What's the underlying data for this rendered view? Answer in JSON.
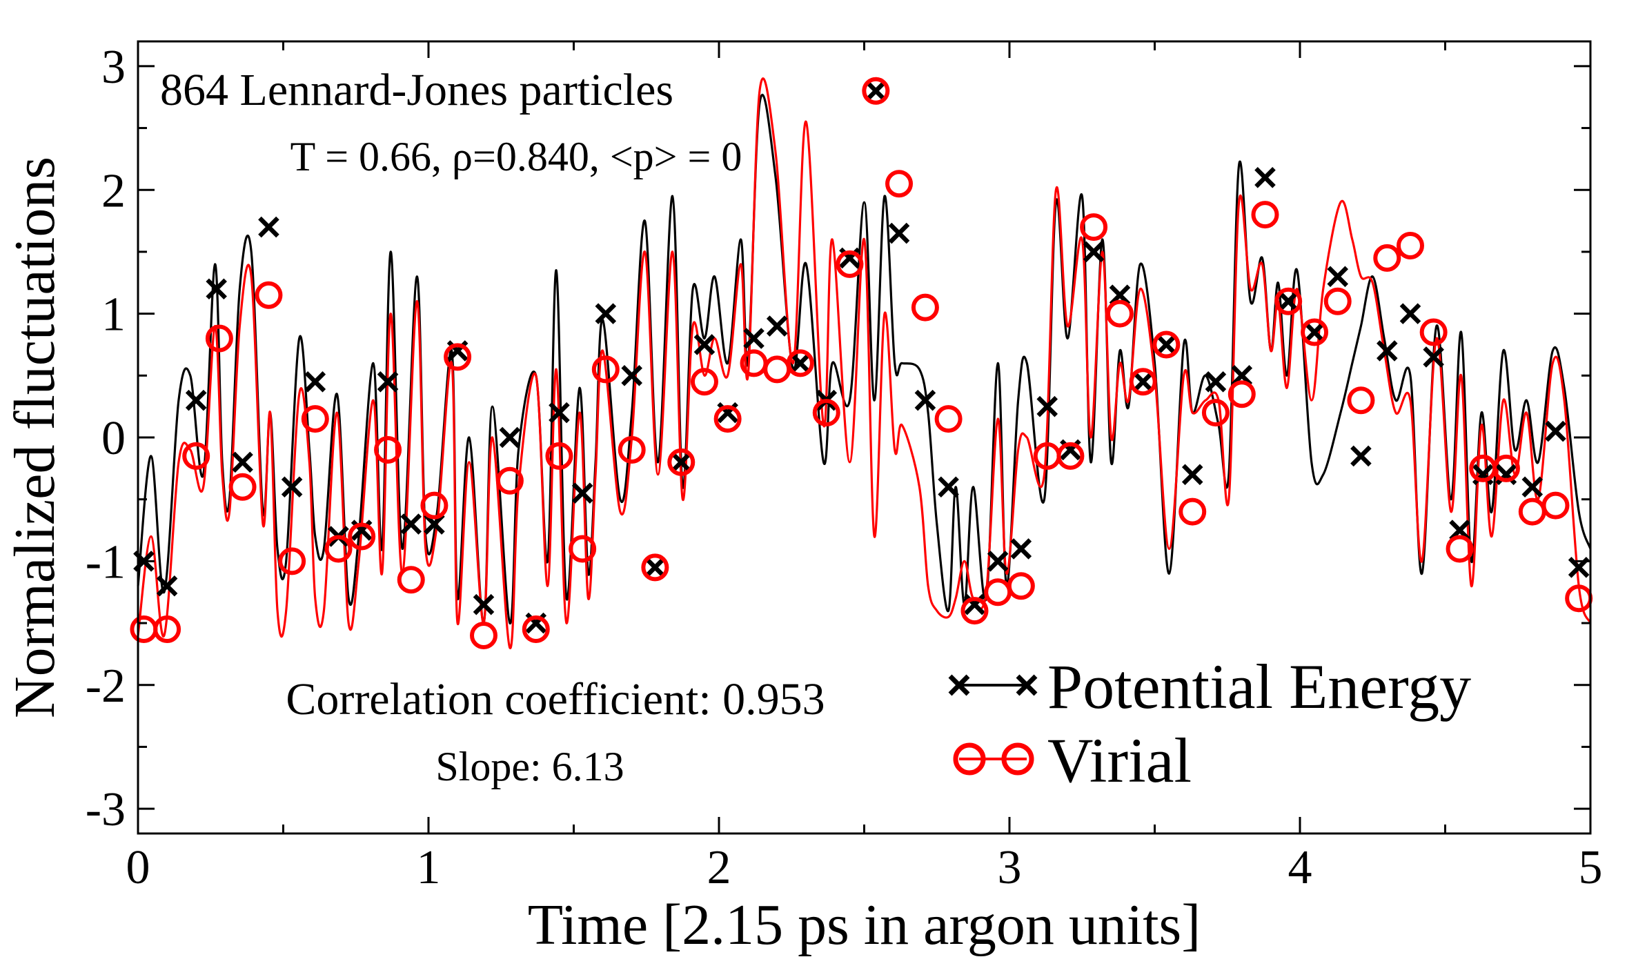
{
  "chart_data": {
    "type": "line",
    "title": "",
    "xlabel": "Time [2.15 ps in argon units]",
    "ylabel": "Normalized fluctuations",
    "xlim": [
      0,
      5
    ],
    "ylim": [
      -3.2,
      3.2
    ],
    "x_ticks": [
      0,
      1,
      2,
      3,
      4,
      5
    ],
    "y_ticks": [
      -3,
      -2,
      -1,
      0,
      1,
      2,
      3
    ],
    "x_tick_labels": [
      "0",
      "1",
      "2",
      "3",
      "4",
      "5"
    ],
    "y_tick_labels": [
      "-3",
      "-2",
      "-1",
      "0",
      "1",
      "2",
      "3"
    ],
    "annotations": {
      "system": "864 Lennard-Jones particles",
      "conditions": "T = 0.66, ρ=0.840, <p> = 0",
      "correlation": "Correlation coefficient: 0.953",
      "slope": "Slope: 6.13"
    },
    "legend_position": "bottom-right",
    "series": [
      {
        "name": "Potential Energy",
        "color": "#000000",
        "marker": "x",
        "x": [
          0.0,
          0.045,
          0.09,
          0.14,
          0.18,
          0.225,
          0.265,
          0.29,
          0.315,
          0.35,
          0.39,
          0.43,
          0.455,
          0.48,
          0.51,
          0.555,
          0.59,
          0.61,
          0.64,
          0.685,
          0.725,
          0.76,
          0.81,
          0.84,
          0.87,
          0.91,
          0.96,
          0.99,
          1.03,
          1.08,
          1.1,
          1.14,
          1.19,
          1.22,
          1.28,
          1.31,
          1.37,
          1.41,
          1.44,
          1.475,
          1.52,
          1.55,
          1.575,
          1.6,
          1.66,
          1.7,
          1.745,
          1.79,
          1.84,
          1.875,
          1.91,
          1.95,
          1.985,
          2.03,
          2.075,
          2.1,
          2.14,
          2.195,
          2.255,
          2.3,
          2.36,
          2.39,
          2.45,
          2.5,
          2.535,
          2.57,
          2.605,
          2.63,
          2.69,
          2.72,
          2.75,
          2.79,
          2.815,
          2.845,
          2.875,
          2.92,
          2.96,
          2.99,
          3.03,
          3.06,
          3.12,
          3.16,
          3.2,
          3.25,
          3.28,
          3.32,
          3.35,
          3.38,
          3.41,
          3.45,
          3.5,
          3.55,
          3.6,
          3.63,
          3.675,
          3.72,
          3.755,
          3.79,
          3.83,
          3.87,
          3.9,
          3.925,
          3.955,
          3.99,
          4.04,
          4.08,
          4.14,
          4.18,
          4.21,
          4.25,
          4.29,
          4.33,
          4.38,
          4.42,
          4.47,
          4.52,
          4.555,
          4.59,
          4.625,
          4.66,
          4.7,
          4.74,
          4.78,
          4.82,
          4.87,
          4.91,
          4.96,
          5.0
        ],
        "y": [
          -1.2,
          -0.15,
          -1.25,
          0.3,
          0.5,
          -0.3,
          1.4,
          -0.2,
          -0.5,
          1.2,
          1.5,
          -0.6,
          0.2,
          -0.9,
          -1.0,
          0.8,
          -0.1,
          -0.8,
          -0.9,
          0.35,
          -1.3,
          -0.8,
          0.6,
          -0.9,
          1.5,
          -0.9,
          1.3,
          -0.8,
          -0.6,
          0.7,
          -1.3,
          0.0,
          -1.5,
          0.25,
          -1.5,
          -0.1,
          0.5,
          -1.0,
          1.35,
          -1.3,
          0.4,
          -1.1,
          -0.2,
          0.95,
          -0.5,
          0.2,
          1.75,
          -0.2,
          1.95,
          -0.4,
          1.2,
          0.8,
          1.3,
          0.6,
          1.6,
          0.6,
          2.7,
          2.1,
          0.55,
          1.4,
          -0.2,
          0.6,
          0.3,
          1.9,
          0.3,
          1.95,
          0.6,
          0.6,
          0.55,
          0.2,
          -0.7,
          -1.4,
          -0.4,
          -1.35,
          -0.4,
          -1.3,
          0.6,
          -1.2,
          0.3,
          0.6,
          -0.5,
          1.9,
          0.8,
          1.95,
          -0.2,
          1.6,
          -0.2,
          0.7,
          0.25,
          1.4,
          0.6,
          -1.1,
          0.75,
          0.2,
          0.5,
          0.1,
          -0.3,
          2.2,
          1.1,
          1.45,
          0.7,
          1.25,
          0.5,
          1.35,
          -0.2,
          -0.3,
          0.2,
          0.6,
          0.9,
          1.3,
          0.8,
          0.3,
          0.5,
          -1.1,
          0.9,
          -0.5,
          0.85,
          -1.0,
          0.2,
          -0.6,
          0.7,
          -0.1,
          0.3,
          -0.2,
          0.7,
          0.4,
          -0.6,
          -0.9
        ],
        "marker_x": [
          0.02,
          0.1,
          0.2,
          0.27,
          0.36,
          0.45,
          0.53,
          0.61,
          0.69,
          0.77,
          0.86,
          0.94,
          1.02,
          1.1,
          1.19,
          1.28,
          1.37,
          1.45,
          1.53,
          1.61,
          1.7,
          1.78,
          1.87,
          1.95,
          2.03,
          2.12,
          2.2,
          2.28,
          2.37,
          2.45,
          2.54,
          2.62,
          2.71,
          2.79,
          2.88,
          2.96,
          3.04,
          3.13,
          3.21,
          3.29,
          3.38,
          3.46,
          3.54,
          3.63,
          3.71,
          3.8,
          3.88,
          3.96,
          4.05,
          4.13,
          4.21,
          4.3,
          4.38,
          4.46,
          4.55,
          4.63,
          4.71,
          4.8,
          4.88,
          4.96
        ],
        "marker_y": [
          -1.0,
          -1.2,
          0.3,
          1.2,
          -0.2,
          1.7,
          -0.4,
          0.45,
          -0.8,
          -0.75,
          0.45,
          -0.7,
          -0.7,
          0.7,
          -1.35,
          0.0,
          -1.5,
          0.2,
          -0.45,
          1.0,
          0.5,
          -1.05,
          -0.2,
          0.75,
          0.2,
          0.8,
          0.9,
          0.6,
          0.3,
          1.45,
          2.8,
          1.65,
          0.3,
          -0.4,
          -1.35,
          -1.0,
          -0.9,
          0.25,
          -0.1,
          1.5,
          1.15,
          0.45,
          0.75,
          -0.3,
          0.45,
          0.5,
          2.1,
          1.1,
          0.85,
          1.3,
          -0.15,
          0.7,
          1.0,
          0.65,
          -0.75,
          -0.3,
          -0.3,
          -0.4,
          0.05,
          -1.05
        ]
      },
      {
        "name": "Virial",
        "color": "#ff0000",
        "marker": "o",
        "x": [
          0.0,
          0.045,
          0.09,
          0.14,
          0.18,
          0.225,
          0.265,
          0.29,
          0.315,
          0.35,
          0.39,
          0.43,
          0.455,
          0.48,
          0.51,
          0.555,
          0.59,
          0.61,
          0.64,
          0.685,
          0.725,
          0.76,
          0.81,
          0.84,
          0.87,
          0.91,
          0.96,
          0.99,
          1.03,
          1.08,
          1.1,
          1.14,
          1.19,
          1.22,
          1.28,
          1.31,
          1.37,
          1.41,
          1.44,
          1.475,
          1.52,
          1.55,
          1.575,
          1.6,
          1.66,
          1.7,
          1.745,
          1.79,
          1.84,
          1.875,
          1.91,
          1.95,
          1.985,
          2.03,
          2.075,
          2.1,
          2.14,
          2.195,
          2.255,
          2.3,
          2.36,
          2.39,
          2.45,
          2.5,
          2.535,
          2.57,
          2.605,
          2.63,
          2.69,
          2.72,
          2.75,
          2.79,
          2.815,
          2.845,
          2.875,
          2.92,
          2.96,
          2.99,
          3.03,
          3.06,
          3.12,
          3.16,
          3.2,
          3.25,
          3.28,
          3.32,
          3.35,
          3.38,
          3.41,
          3.45,
          3.5,
          3.55,
          3.6,
          3.63,
          3.675,
          3.72,
          3.755,
          3.79,
          3.83,
          3.87,
          3.9,
          3.925,
          3.955,
          3.99,
          4.04,
          4.08,
          4.14,
          4.18,
          4.21,
          4.25,
          4.29,
          4.33,
          4.38,
          4.42,
          4.47,
          4.52,
          4.555,
          4.59,
          4.625,
          4.66,
          4.7,
          4.74,
          4.78,
          4.82,
          4.87,
          4.91,
          4.96,
          5.0
        ],
        "y": [
          -1.6,
          -0.8,
          -1.6,
          -0.2,
          -0.1,
          -0.4,
          0.9,
          -0.3,
          -0.6,
          0.9,
          1.3,
          -0.7,
          0.2,
          -1.4,
          -1.4,
          0.35,
          -0.2,
          -1.3,
          -1.4,
          0.2,
          -1.5,
          -1.0,
          0.3,
          -1.1,
          1.0,
          -1.1,
          1.1,
          -0.9,
          -0.7,
          0.6,
          -1.5,
          -0.2,
          -1.5,
          0.0,
          -1.7,
          -0.4,
          0.5,
          -1.2,
          0.55,
          -1.5,
          0.2,
          -1.3,
          -0.3,
          0.7,
          -0.6,
          0.0,
          1.5,
          -0.3,
          1.5,
          -0.5,
          0.9,
          0.5,
          0.8,
          0.5,
          1.4,
          0.5,
          2.8,
          2.3,
          0.6,
          2.55,
          0.1,
          1.6,
          -0.2,
          1.6,
          -0.8,
          1.0,
          -0.1,
          0.1,
          -0.4,
          -1.2,
          -1.4,
          -1.45,
          -1.3,
          -1.0,
          -1.3,
          -1.25,
          0.15,
          -1.1,
          -0.1,
          0.0,
          -0.3,
          2.0,
          0.9,
          1.6,
          0.0,
          1.5,
          0.0,
          0.6,
          0.3,
          1.2,
          0.5,
          -0.9,
          0.5,
          0.2,
          0.3,
          0.3,
          -0.5,
          1.9,
          1.2,
          1.4,
          0.7,
          1.1,
          0.4,
          1.2,
          0.3,
          1.2,
          1.9,
          1.6,
          1.3,
          1.25,
          0.7,
          0.2,
          0.3,
          -1.0,
          0.8,
          -0.6,
          0.5,
          -1.2,
          0.1,
          -0.8,
          0.3,
          -0.3,
          0.2,
          -0.5,
          0.6,
          0.3,
          -1.2,
          -1.5
        ],
        "marker_x": [
          0.02,
          0.1,
          0.2,
          0.28,
          0.36,
          0.45,
          0.53,
          0.61,
          0.69,
          0.77,
          0.86,
          0.94,
          1.02,
          1.1,
          1.19,
          1.28,
          1.37,
          1.45,
          1.53,
          1.61,
          1.7,
          1.78,
          1.87,
          1.95,
          2.03,
          2.12,
          2.2,
          2.28,
          2.37,
          2.45,
          2.54,
          2.62,
          2.71,
          2.79,
          2.88,
          2.96,
          3.04,
          3.13,
          3.21,
          3.29,
          3.38,
          3.46,
          3.54,
          3.63,
          3.71,
          3.8,
          3.88,
          3.96,
          4.05,
          4.13,
          4.21,
          4.3,
          4.38,
          4.46,
          4.55,
          4.63,
          4.71,
          4.8,
          4.88,
          4.96
        ],
        "marker_y": [
          -1.55,
          -1.55,
          -0.15,
          0.8,
          -0.4,
          1.15,
          -1.0,
          0.15,
          -0.9,
          -0.8,
          -0.1,
          -1.15,
          -0.55,
          0.65,
          -1.6,
          -0.35,
          -1.55,
          -0.15,
          -0.9,
          0.55,
          -0.1,
          -1.05,
          -0.2,
          0.45,
          0.15,
          0.6,
          0.55,
          0.6,
          0.2,
          1.4,
          2.8,
          2.05,
          1.05,
          0.15,
          -1.4,
          -1.25,
          -1.2,
          -0.15,
          -0.15,
          1.7,
          1.0,
          0.45,
          0.75,
          -0.6,
          0.2,
          0.35,
          1.8,
          1.1,
          0.85,
          1.1,
          0.3,
          1.45,
          1.55,
          0.85,
          -0.9,
          -0.25,
          -0.25,
          -0.6,
          -0.55,
          -1.3
        ]
      }
    ]
  }
}
